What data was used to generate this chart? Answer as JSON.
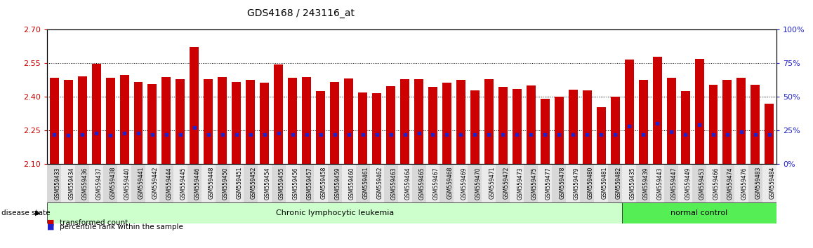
{
  "title": "GDS4168 / 243116_at",
  "samples": [
    "GSM559433",
    "GSM559434",
    "GSM559436",
    "GSM559437",
    "GSM559438",
    "GSM559440",
    "GSM559441",
    "GSM559442",
    "GSM559444",
    "GSM559445",
    "GSM559446",
    "GSM559448",
    "GSM559450",
    "GSM559451",
    "GSM559452",
    "GSM559454",
    "GSM559455",
    "GSM559456",
    "GSM559457",
    "GSM559458",
    "GSM559459",
    "GSM559460",
    "GSM559461",
    "GSM559462",
    "GSM559463",
    "GSM559464",
    "GSM559465",
    "GSM559467",
    "GSM559468",
    "GSM559469",
    "GSM559470",
    "GSM559471",
    "GSM559472",
    "GSM559473",
    "GSM559475",
    "GSM559477",
    "GSM559478",
    "GSM559479",
    "GSM559480",
    "GSM559481",
    "GSM559482",
    "GSM559435",
    "GSM559439",
    "GSM559443",
    "GSM559447",
    "GSM559449",
    "GSM559453",
    "GSM559466",
    "GSM559474",
    "GSM559476",
    "GSM559483",
    "GSM559484"
  ],
  "bar_values": [
    2.485,
    2.475,
    2.49,
    2.548,
    2.485,
    2.497,
    2.465,
    2.458,
    2.488,
    2.478,
    2.622,
    2.478,
    2.488,
    2.465,
    2.475,
    2.462,
    2.546,
    2.486,
    2.488,
    2.425,
    2.465,
    2.483,
    2.42,
    2.416,
    2.447,
    2.478,
    2.478,
    2.443,
    2.462,
    2.475,
    2.428,
    2.478,
    2.445,
    2.435,
    2.45,
    2.39,
    2.4,
    2.432,
    2.43,
    2.353,
    2.4,
    2.565,
    2.475,
    2.58,
    2.485,
    2.425,
    2.57,
    2.452,
    2.476,
    2.485,
    2.455,
    2.37
  ],
  "percentile_values": [
    22,
    21,
    22,
    23,
    21,
    23,
    23,
    22,
    22,
    22,
    27,
    22,
    22,
    22,
    22,
    22,
    23,
    22,
    22,
    22,
    22,
    22,
    22,
    22,
    22,
    22,
    23,
    22,
    22,
    22,
    22,
    22,
    22,
    22,
    22,
    22,
    22,
    22,
    22,
    22,
    22,
    28,
    22,
    30,
    24,
    22,
    29,
    22,
    22,
    24,
    22,
    22
  ],
  "disease_groups": [
    {
      "label": "Chronic lymphocytic leukemia",
      "start": 0,
      "end": 40,
      "color": "#ccffcc"
    },
    {
      "label": "normal control",
      "start": 41,
      "end": 51,
      "color": "#55ee55"
    }
  ],
  "ylim": [
    2.1,
    2.7
  ],
  "yticks": [
    2.1,
    2.25,
    2.4,
    2.55,
    2.7
  ],
  "right_ylim": [
    0,
    100
  ],
  "right_yticks": [
    0,
    25,
    50,
    75,
    100
  ],
  "dotted_lines": [
    2.55,
    2.4,
    2.25
  ],
  "bar_color": "#cc0000",
  "percentile_color": "#2222cc",
  "left_tick_color": "#cc0000",
  "right_tick_color": "#2222cc",
  "title_color": "#000000"
}
